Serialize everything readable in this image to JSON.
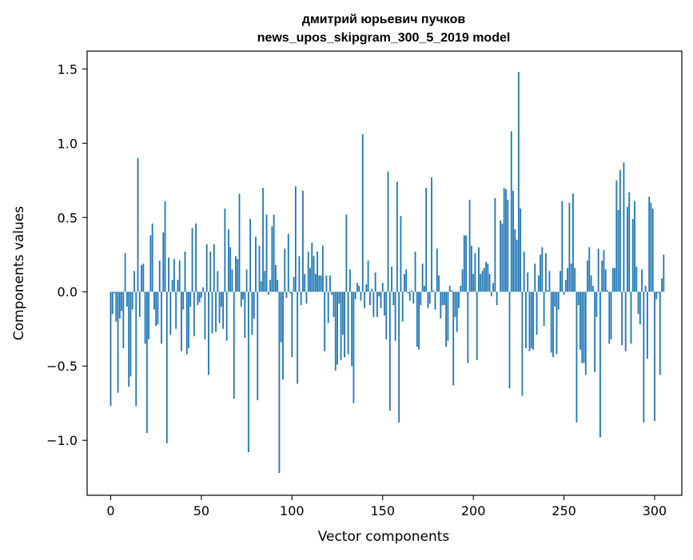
{
  "chart_data": {
    "type": "bar",
    "title": "дмитрий юрьевич пучков",
    "subtitle": "news_upos_skipgram_300_5_2019 model",
    "xlabel": "Vector components",
    "ylabel": "Components values",
    "xlim": [
      -13,
      315
    ],
    "ylim": [
      -1.37,
      1.62
    ],
    "xticks": [
      0,
      50,
      100,
      150,
      200,
      250,
      300
    ],
    "xtick_labels": [
      "0",
      "50",
      "100",
      "150",
      "200",
      "250",
      "300"
    ],
    "yticks": [
      -1.0,
      -0.5,
      0.0,
      0.5,
      1.0,
      1.5
    ],
    "ytick_labels": [
      "−1.0",
      "−0.5",
      "0.0",
      "0.5",
      "1.0",
      "1.5"
    ],
    "grid": false,
    "bar_color": "#1f77b4",
    "bar_width": 0.8,
    "values": [
      -0.77,
      -0.15,
      -0.01,
      -0.2,
      -0.68,
      -0.18,
      -0.13,
      -0.38,
      0.26,
      -0.1,
      -0.64,
      -0.57,
      -0.12,
      0.14,
      -0.77,
      0.9,
      -0.17,
      0.18,
      0.19,
      -0.35,
      -0.95,
      -0.32,
      0.38,
      0.46,
      -0.12,
      -0.23,
      -0.22,
      0.21,
      -0.35,
      0.4,
      0.61,
      -1.02,
      0.23,
      -0.29,
      0.08,
      0.22,
      -0.25,
      0.08,
      0.21,
      -0.4,
      -0.12,
      0.27,
      -0.42,
      -0.38,
      -0.1,
      0.43,
      -0.3,
      0.46,
      -0.09,
      -0.07,
      -0.04,
      0.03,
      -0.32,
      0.32,
      -0.56,
      0.27,
      -0.28,
      0.32,
      -0.27,
      0.14,
      -0.21,
      -0.1,
      -0.25,
      0.56,
      -0.33,
      0.42,
      0.3,
      0.15,
      -0.72,
      0.24,
      0.22,
      0.66,
      -0.1,
      -0.05,
      -0.31,
      0.15,
      -1.08,
      0.49,
      -0.29,
      -0.18,
      0.37,
      -0.73,
      0.31,
      0.07,
      0.7,
      0.14,
      0.52,
      -0.02,
      0.08,
      0.44,
      0.52,
      0.18,
      0.08,
      -1.22,
      -0.34,
      -0.59,
      0.29,
      -0.04,
      0.39,
      -0.01,
      -0.44,
      0.1,
      0.71,
      -0.62,
      0.24,
      -0.09,
      0.68,
      0.12,
      -0.08,
      0.27,
      0.16,
      0.33,
      0.24,
      0.12,
      0.27,
      0.11,
      0.11,
      0.31,
      -0.4,
      0.11,
      -0.21,
      0.11,
      -0.02,
      -0.17,
      -0.53,
      -0.49,
      -0.08,
      -0.46,
      -0.29,
      -0.44,
      0.52,
      -0.42,
      0.15,
      -0.5,
      -0.75,
      -0.05,
      0.06,
      0.04,
      -0.06,
      1.06,
      -0.11,
      0.05,
      0.21,
      -0.09,
      0.02,
      -0.17,
      0.13,
      -0.17,
      -0.03,
      -0.11,
      0.06,
      -0.16,
      -0.32,
      0.81,
      -0.8,
      0.17,
      -0.09,
      -0.33,
      0.74,
      -0.88,
      0.51,
      -0.2,
      0.12,
      0.15,
      -0.01,
      -0.06,
      0.01,
      -0.08,
      0.27,
      -0.37,
      -0.39,
      -0.09,
      0.19,
      0.04,
      0.7,
      -0.11,
      -0.08,
      0.77,
      0.01,
      -0.12,
      0.29,
      0.11,
      -0.18,
      -0.09,
      -0.09,
      -0.37,
      -0.33,
      0.04,
      0.01,
      -0.63,
      -0.17,
      -0.27,
      -0.11,
      0.04,
      0.15,
      0.38,
      0.38,
      -0.48,
      0.62,
      0.31,
      0.12,
      0.26,
      -0.46,
      0.3,
      0.12,
      0.14,
      0.16,
      0.2,
      0.19,
      0.12,
      -0.03,
      0.06,
      0.63,
      -0.09,
      0.0,
      0.48,
      0.46,
      0.7,
      0.69,
      0.62,
      -0.65,
      1.08,
      0.68,
      0.42,
      0.35,
      1.48,
      0.56,
      -0.7,
      0.27,
      -0.38,
      0.13,
      -0.4,
      -0.38,
      -0.39,
      0.19,
      -0.29,
      0.11,
      0.25,
      0.3,
      -0.23,
      0.26,
      0.01,
      0.14,
      -0.41,
      -0.44,
      -0.1,
      -0.42,
      -0.12,
      0.14,
      0.61,
      -0.02,
      0.08,
      0.16,
      0.6,
      0.19,
      0.66,
      0.16,
      -0.88,
      -0.09,
      -0.39,
      -0.48,
      -0.48,
      -0.56,
      0.21,
      0.3,
      0.11,
      0.04,
      -0.54,
      -0.17,
      0.29,
      -0.98,
      0.21,
      0.28,
      0.15,
      0.01,
      -0.35,
      -0.32,
      0.16,
      0.16,
      0.75,
      0.55,
      0.82,
      -0.36,
      0.87,
      -0.4,
      0.57,
      0.67,
      -0.35,
      0.49,
      0.61,
      0.17,
      -0.15,
      -0.22,
      0.15,
      -0.88,
      0.04,
      -0.45,
      0.64,
      0.6,
      0.56,
      -0.87,
      -0.05,
      -0.01,
      -0.56,
      0.09,
      0.25
    ]
  }
}
